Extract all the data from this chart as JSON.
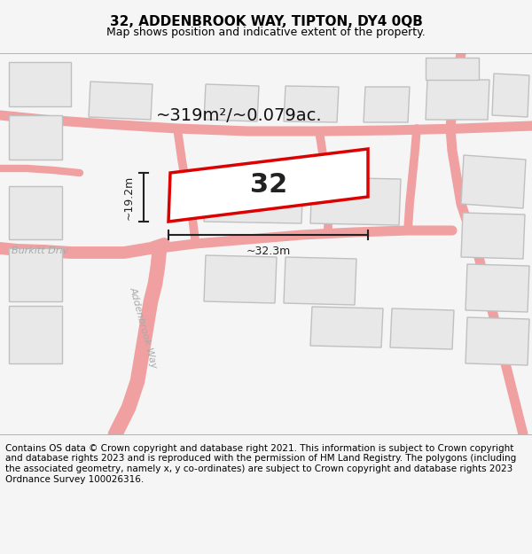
{
  "title": "32, ADDENBROOK WAY, TIPTON, DY4 0QB",
  "subtitle": "Map shows position and indicative extent of the property.",
  "footer": "Contains OS data © Crown copyright and database right 2021. This information is subject to Crown copyright and database rights 2023 and is reproduced with the permission of HM Land Registry. The polygons (including the associated geometry, namely x, y co-ordinates) are subject to Crown copyright and database rights 2023 Ordnance Survey 100026316.",
  "area_label": "~319m²/~0.079ac.",
  "property_number": "32",
  "dim_width": "~32.3m",
  "dim_height": "~19.2m",
  "road_label_1": "Burkitt Driv",
  "road_label_2": "Addenbrook Way",
  "bg_color": "#f5f5f5",
  "map_bg": "#ffffff",
  "building_fill": "#e8e8e8",
  "building_stroke": "#cccccc",
  "road_color": "#f0a0a0",
  "property_stroke": "#dd0000",
  "property_fill": "#ffffff",
  "dim_color": "#222222",
  "title_fontsize": 11,
  "subtitle_fontsize": 9,
  "footer_fontsize": 7.5
}
